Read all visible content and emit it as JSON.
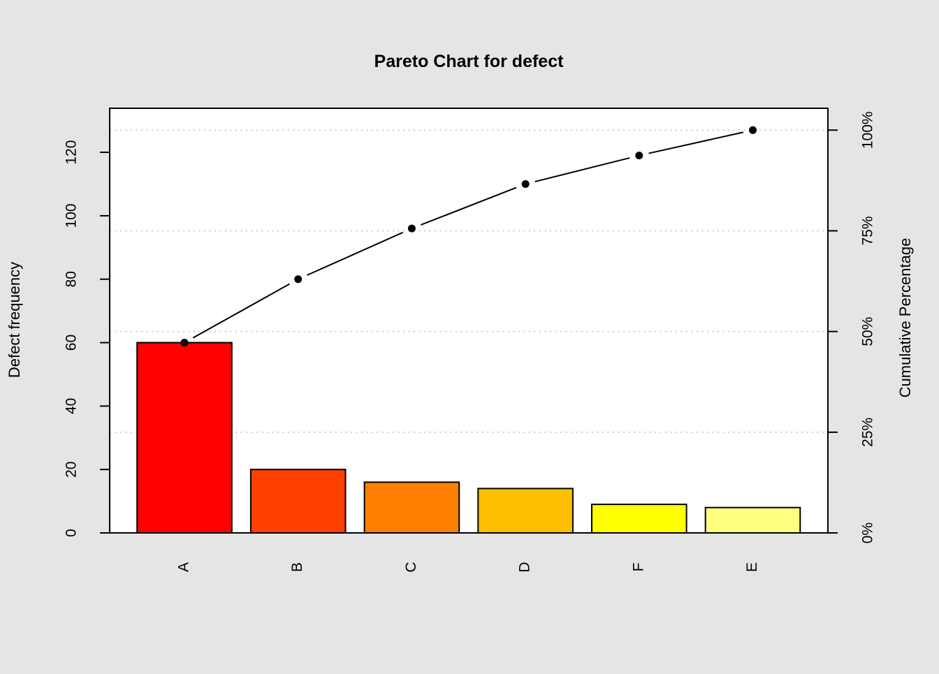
{
  "chart_data": {
    "type": "bar",
    "subtype": "pareto",
    "title": "Pareto Chart for defect",
    "ylabel_left": "Defect frequency",
    "ylabel_right": "Cumulative Percentage",
    "categories": [
      "A",
      "B",
      "C",
      "D",
      "F",
      "E"
    ],
    "frequencies": [
      60,
      20,
      16,
      14,
      9,
      8
    ],
    "cumulative": [
      60,
      80,
      96,
      110,
      119,
      127
    ],
    "cumulative_pct": [
      47.2,
      63.0,
      75.6,
      86.6,
      93.7,
      100.0
    ],
    "total": 127,
    "bar_colors": [
      "#FF0000",
      "#FF4000",
      "#FF8000",
      "#FFBF00",
      "#FFFF00",
      "#FFFF80"
    ],
    "bar_border_color": "#000000",
    "left_ticks": [
      0,
      20,
      40,
      60,
      80,
      100,
      120
    ],
    "right_ticks": [
      {
        "pct": 0,
        "label": "0%"
      },
      {
        "pct": 25,
        "label": "25%"
      },
      {
        "pct": 50,
        "label": "50%"
      },
      {
        "pct": 75,
        "label": "75%"
      },
      {
        "pct": 100,
        "label": "100%"
      }
    ],
    "gridlines_at_pct": [
      25,
      50,
      75,
      100
    ],
    "grid_color": "#cbcbcb",
    "grid_style": "dotted",
    "line_color": "#000000",
    "point_color": "#000000",
    "background_color": "#e5e5e5",
    "plot_background_color": "#ffffff",
    "ylim_left": [
      0,
      133.9
    ],
    "ylim_right_pct": [
      0,
      105.4
    ],
    "legend": "none"
  }
}
